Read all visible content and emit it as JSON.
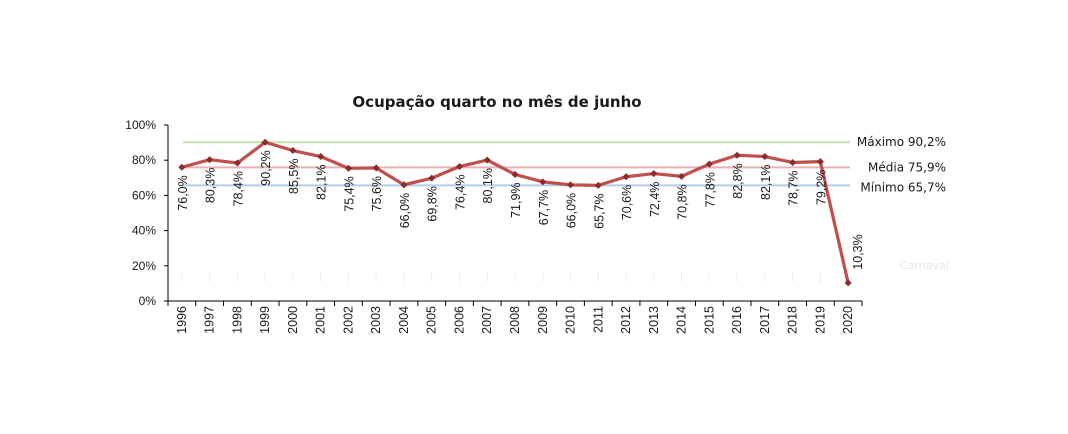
{
  "chart_data": {
    "type": "line",
    "title": "Ocupação quarto no mês de junho",
    "xlabel": "",
    "ylabel": "",
    "ylim": [
      0,
      100
    ],
    "y_ticks": [
      "0%",
      "20%",
      "40%",
      "60%",
      "80%",
      "100%"
    ],
    "categories": [
      "1996",
      "1997",
      "1998",
      "1999",
      "2000",
      "2001",
      "2002",
      "2003",
      "2004",
      "2005",
      "2006",
      "2007",
      "2008",
      "2009",
      "2010",
      "2011",
      "2012",
      "2013",
      "2014",
      "2015",
      "2016",
      "2017",
      "2018",
      "2019",
      "2020"
    ],
    "series": [
      {
        "values": [
          76.0,
          80.3,
          78.4,
          90.2,
          85.5,
          82.1,
          75.4,
          75.6,
          66.0,
          69.8,
          76.4,
          80.1,
          71.9,
          67.7,
          66.0,
          65.7,
          70.6,
          72.4,
          70.8,
          77.8,
          82.8,
          82.1,
          78.7,
          79.2,
          10.3
        ],
        "labels": [
          "76,0%",
          "80,3%",
          "78,4%",
          "90,2%",
          "85,5%",
          "82,1%",
          "75,4%",
          "75,6%",
          "66,0%",
          "69,8%",
          "76,4%",
          "80,1%",
          "71,9%",
          "67,7%",
          "66,0%",
          "65,7%",
          "70,6%",
          "72,4%",
          "70,8%",
          "77,8%",
          "82,8%",
          "82,1%",
          "78,7%",
          "79,2%",
          "10,3%"
        ],
        "color": "#c0504d"
      }
    ],
    "reference_lines": [
      {
        "label": "Máximo 90,2%",
        "value": 90.2,
        "color": "#c3e0a8"
      },
      {
        "label": "Média 75,9%",
        "value": 75.9,
        "color": "#e6b3b3"
      },
      {
        "label": "Mínimo 65,7%",
        "value": 65.7,
        "color": "#b3cde8"
      }
    ],
    "annotation": "Carnaval",
    "grid": false
  }
}
